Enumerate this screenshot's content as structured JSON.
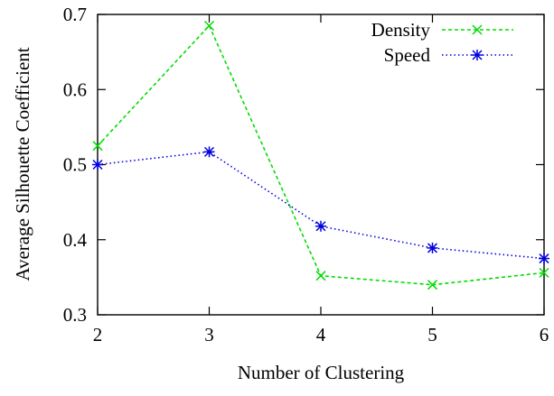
{
  "chart_data": {
    "type": "line",
    "title": "",
    "xlabel": "Number of Clustering",
    "ylabel": "Average Silhouette Coefficient",
    "x": [
      2,
      3,
      4,
      5,
      6
    ],
    "xlim": [
      2,
      6
    ],
    "ylim": [
      0.3,
      0.7
    ],
    "xticks": [
      "2",
      "3",
      "4",
      "5",
      "6"
    ],
    "yticks": [
      "0.3",
      "0.4",
      "0.5",
      "0.6",
      "0.7"
    ],
    "grid": false,
    "legend_position": "top-right",
    "series": [
      {
        "name": "Density",
        "values": [
          0.525,
          0.685,
          0.352,
          0.34,
          0.356
        ],
        "color": "#00dd00",
        "line_style": "dashed",
        "marker": "x"
      },
      {
        "name": "Speed",
        "values": [
          0.5,
          0.517,
          0.418,
          0.389,
          0.375
        ],
        "color": "#0000dd",
        "line_style": "dotted",
        "marker": "star"
      }
    ]
  }
}
